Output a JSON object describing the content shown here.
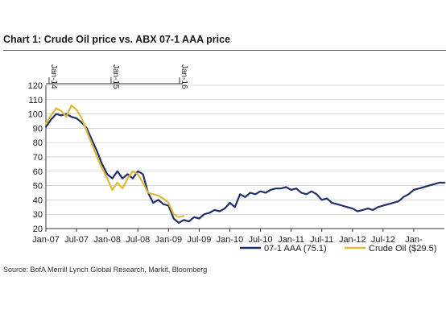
{
  "title": "Chart 1: Crude Oil price vs. ABX 07-1 AAA price",
  "source": "Source: BofA Merrill Lynch Global Research, Markit, Bloomberg",
  "colors": {
    "abx": "#1f2f6b",
    "oil": "#e0b83a",
    "grid": "#c9c9c9",
    "axis": "#333333"
  },
  "chart_data": {
    "type": "line",
    "title": "Chart 1: Crude Oil price vs. ABX 07-1 AAA price",
    "xlabel": "",
    "ylabel": "",
    "ylim": [
      20,
      120
    ],
    "yticks": [
      20,
      30,
      40,
      50,
      60,
      70,
      80,
      90,
      100,
      110,
      120
    ],
    "xticks": [
      "Jan-07",
      "Jul-07",
      "Jan-08",
      "Jul-08",
      "Jan-09",
      "Jul-09",
      "Jan-10",
      "Jul-10",
      "Jan-11",
      "Jul-11",
      "Jan-12",
      "Jul-12",
      "Jan-"
    ],
    "top_axis_labels": [
      "Jan-14",
      "Jan-15",
      "Jan-16"
    ],
    "grid": true,
    "legend": "bottom-right",
    "series": [
      {
        "name": "07-1 AAA (75.1)",
        "color": "#1f2f6b",
        "points": [
          [
            0,
            91
          ],
          [
            1,
            96
          ],
          [
            2,
            100
          ],
          [
            3,
            99
          ],
          [
            4,
            100
          ],
          [
            5,
            98
          ],
          [
            6,
            97
          ],
          [
            7,
            94
          ],
          [
            8,
            90
          ],
          [
            9,
            82
          ],
          [
            10,
            74
          ],
          [
            11,
            65
          ],
          [
            12,
            58
          ],
          [
            13,
            55
          ],
          [
            14,
            60
          ],
          [
            15,
            55
          ],
          [
            16,
            58
          ],
          [
            17,
            55
          ],
          [
            18,
            60
          ],
          [
            19,
            58
          ],
          [
            20,
            45
          ],
          [
            21,
            38
          ],
          [
            22,
            40
          ],
          [
            23,
            37
          ],
          [
            24,
            36
          ],
          [
            25,
            27
          ],
          [
            26,
            24
          ],
          [
            27,
            26
          ],
          [
            28,
            25
          ],
          [
            29,
            28
          ],
          [
            30,
            27
          ],
          [
            31,
            30
          ],
          [
            32,
            31
          ],
          [
            33,
            33
          ],
          [
            34,
            32
          ],
          [
            35,
            34
          ],
          [
            36,
            38
          ],
          [
            37,
            35
          ],
          [
            38,
            44
          ],
          [
            39,
            42
          ],
          [
            40,
            45
          ],
          [
            41,
            44
          ],
          [
            42,
            46
          ],
          [
            43,
            45
          ],
          [
            44,
            47
          ],
          [
            45,
            48
          ],
          [
            46,
            48
          ],
          [
            47,
            49
          ],
          [
            48,
            47
          ],
          [
            49,
            48
          ],
          [
            50,
            45
          ],
          [
            51,
            44
          ],
          [
            52,
            46
          ],
          [
            53,
            44
          ],
          [
            54,
            40
          ],
          [
            55,
            41
          ],
          [
            56,
            38
          ],
          [
            57,
            37
          ],
          [
            58,
            36
          ],
          [
            59,
            35
          ],
          [
            60,
            34
          ],
          [
            61,
            32
          ],
          [
            62,
            33
          ],
          [
            63,
            34
          ],
          [
            64,
            33
          ],
          [
            65,
            35
          ],
          [
            66,
            36
          ],
          [
            67,
            37
          ],
          [
            68,
            38
          ],
          [
            69,
            39
          ],
          [
            70,
            42
          ],
          [
            71,
            44
          ],
          [
            72,
            47
          ],
          [
            73,
            48
          ],
          [
            74,
            49
          ],
          [
            75,
            50
          ],
          [
            76,
            51
          ],
          [
            77,
            52
          ],
          [
            78,
            52
          ]
        ]
      },
      {
        "name": "Crude Oil ($29.5)",
        "color": "#e0b83a",
        "points": [
          [
            0,
            93
          ],
          [
            1,
            99
          ],
          [
            2,
            104
          ],
          [
            3,
            102
          ],
          [
            4,
            98
          ],
          [
            5,
            106
          ],
          [
            6,
            103
          ],
          [
            7,
            97
          ],
          [
            8,
            88
          ],
          [
            9,
            79
          ],
          [
            10,
            70
          ],
          [
            11,
            62
          ],
          [
            12,
            55
          ],
          [
            13,
            47
          ],
          [
            14,
            52
          ],
          [
            15,
            48
          ],
          [
            16,
            55
          ],
          [
            17,
            60
          ],
          [
            18,
            58
          ],
          [
            19,
            52
          ],
          [
            20,
            45
          ],
          [
            21,
            44
          ],
          [
            22,
            43
          ],
          [
            23,
            41
          ],
          [
            24,
            38
          ],
          [
            25,
            30
          ],
          [
            26,
            28
          ],
          [
            27,
            29
          ]
        ]
      }
    ]
  }
}
